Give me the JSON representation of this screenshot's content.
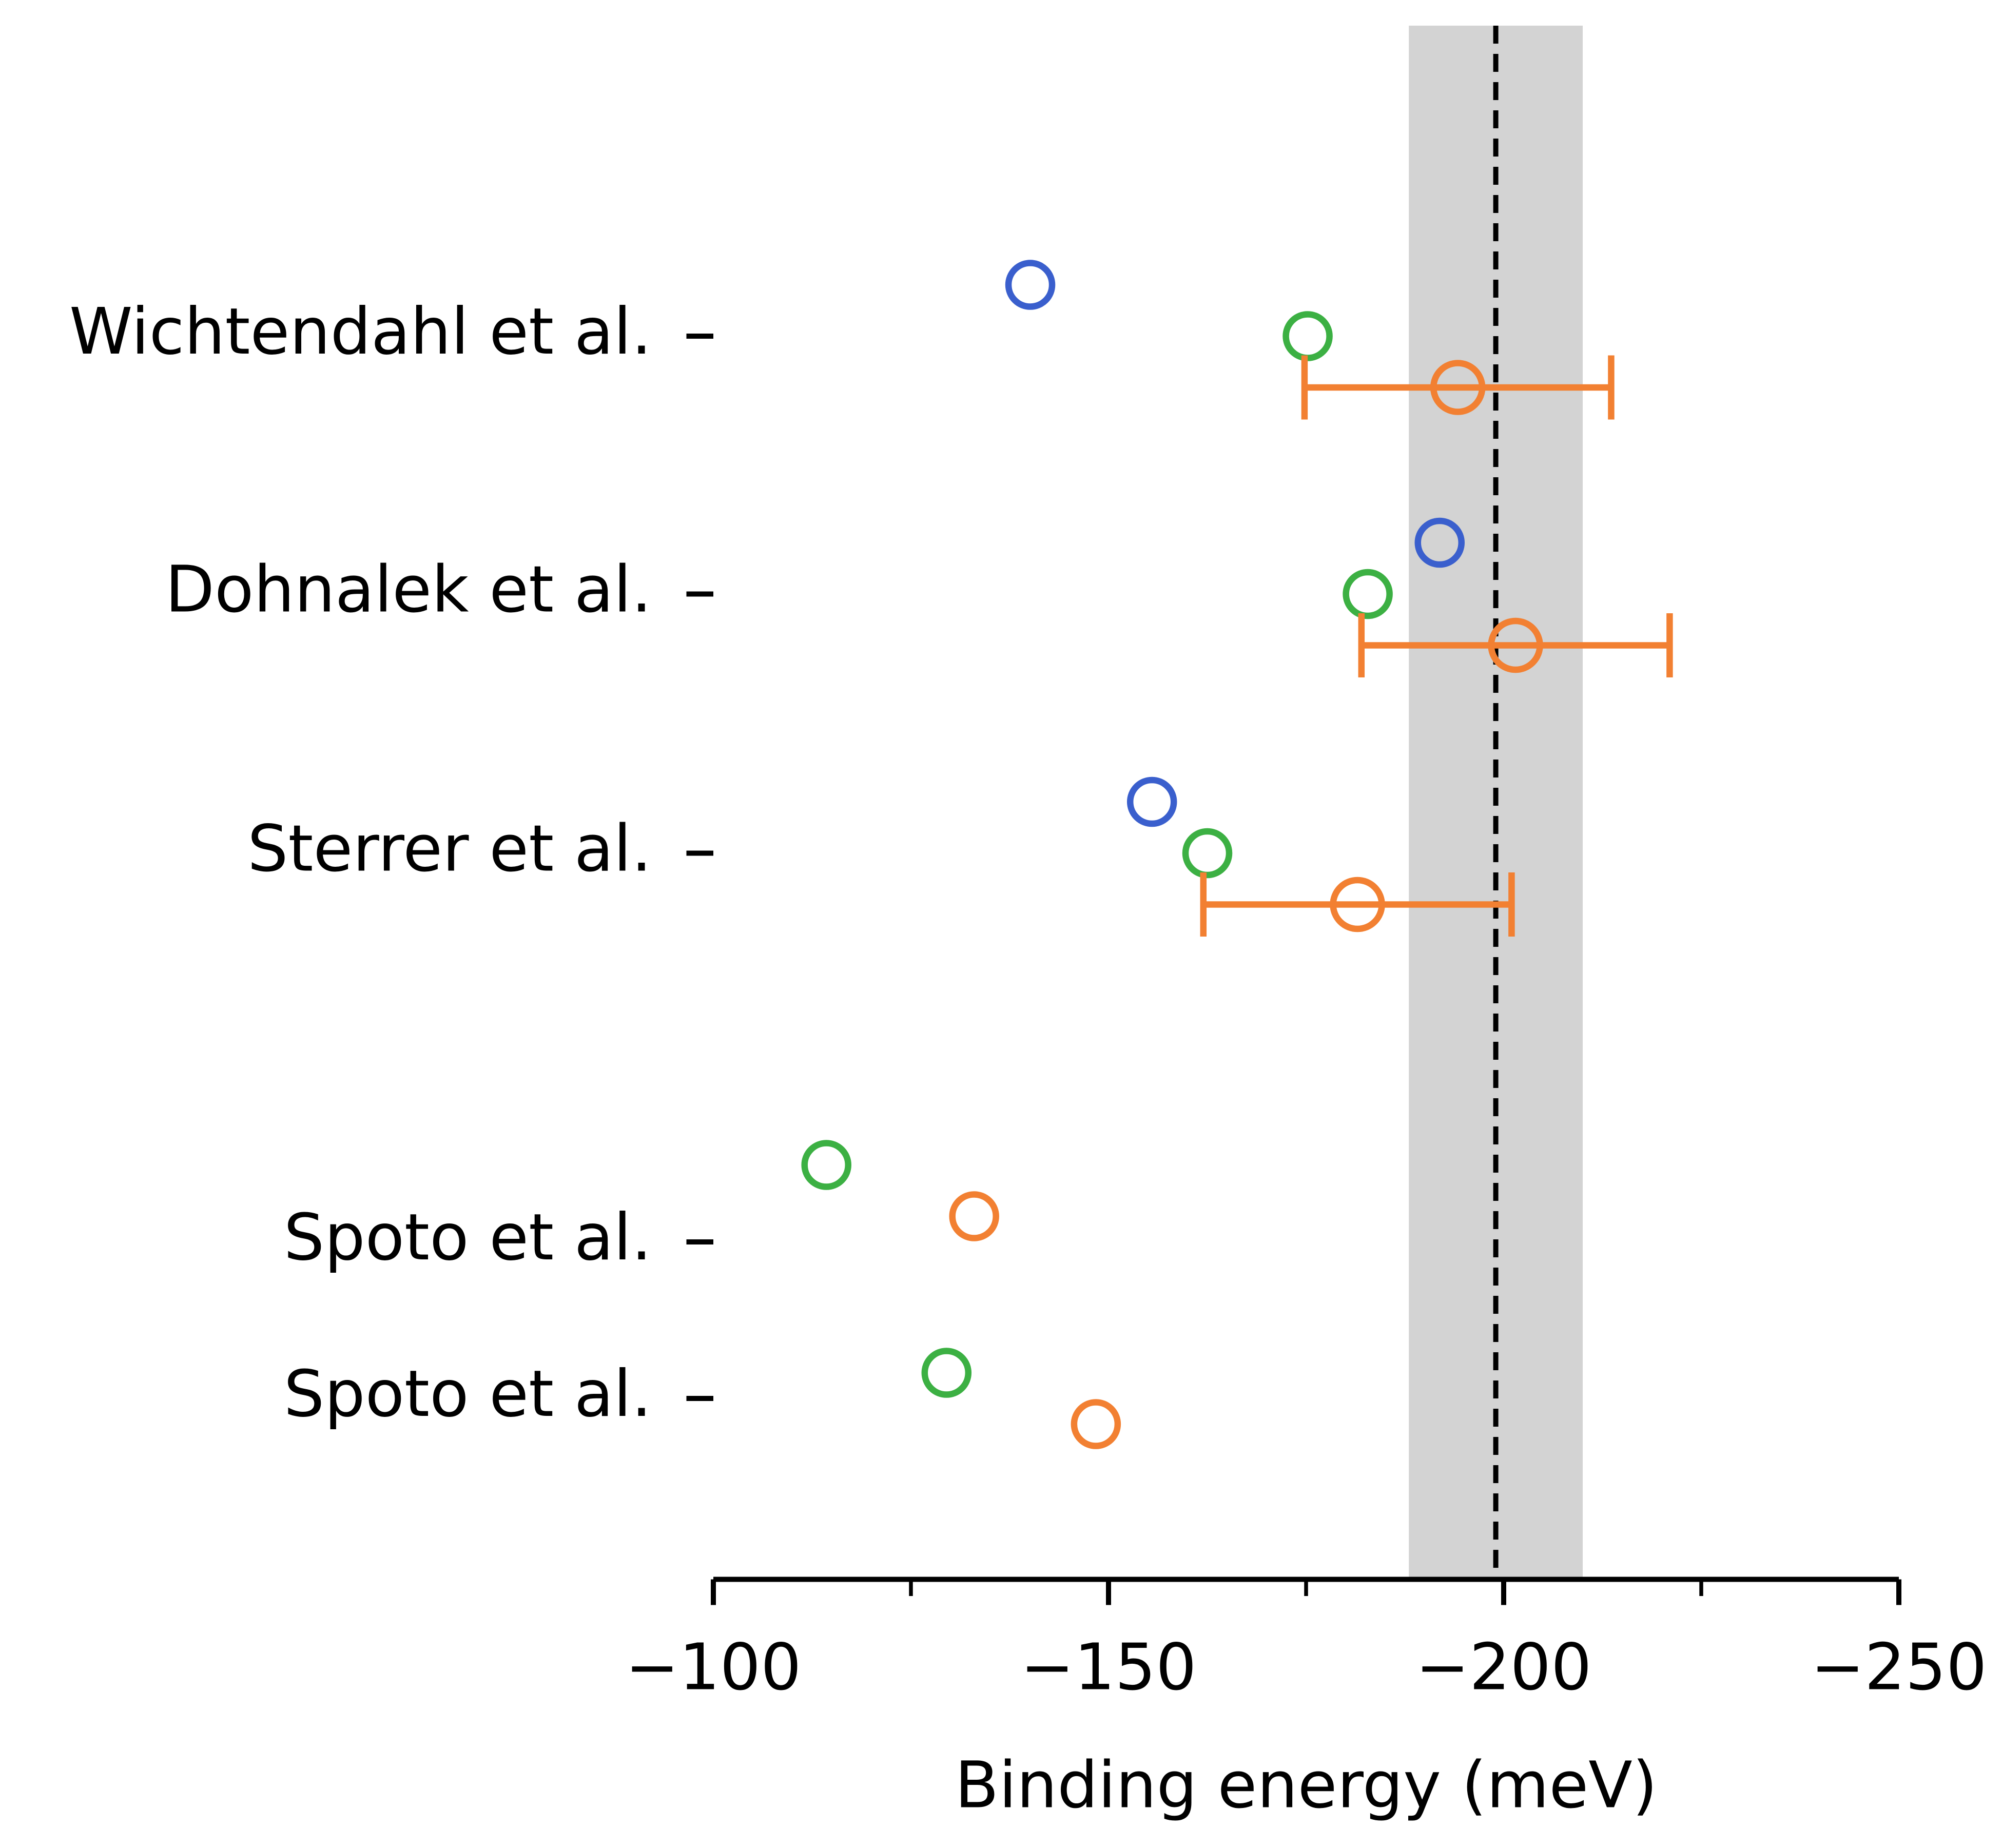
{
  "chart_data": {
    "type": "dot",
    "xlabel": "Binding energy (meV)",
    "categories": [
      "Wichtendahl et al.",
      "Dohnalek et al.",
      "Sterrer et al.",
      "Spoto et al.",
      "Spoto et al."
    ],
    "series": [
      {
        "color": "#3a5fcd",
        "values": [
          -140.1,
          -191.9,
          -155.5,
          null,
          null
        ]
      },
      {
        "color": "#3cb043",
        "values": [
          -175.2,
          -182.8,
          -162.5,
          -114.3,
          -129.5
        ]
      },
      {
        "color": "#f28032",
        "values": [
          -194.2,
          -201.5,
          -181.5,
          -133.0,
          -148.4
        ],
        "errors": [
          19.4,
          19.5,
          19.5,
          null,
          null
        ]
      }
    ],
    "xlim": [
      -100,
      -250
    ],
    "xticks": [
      {
        "value": -100,
        "label": "−100"
      },
      {
        "value": -150,
        "label": "−150"
      },
      {
        "value": -200,
        "label": "−200"
      },
      {
        "value": -250,
        "label": "−250"
      }
    ],
    "xminorticks": [
      -125,
      -175,
      -225
    ],
    "reference_band": [
      -188,
      -210
    ],
    "reference_line": -199,
    "band_color": "#d3d3d3"
  }
}
